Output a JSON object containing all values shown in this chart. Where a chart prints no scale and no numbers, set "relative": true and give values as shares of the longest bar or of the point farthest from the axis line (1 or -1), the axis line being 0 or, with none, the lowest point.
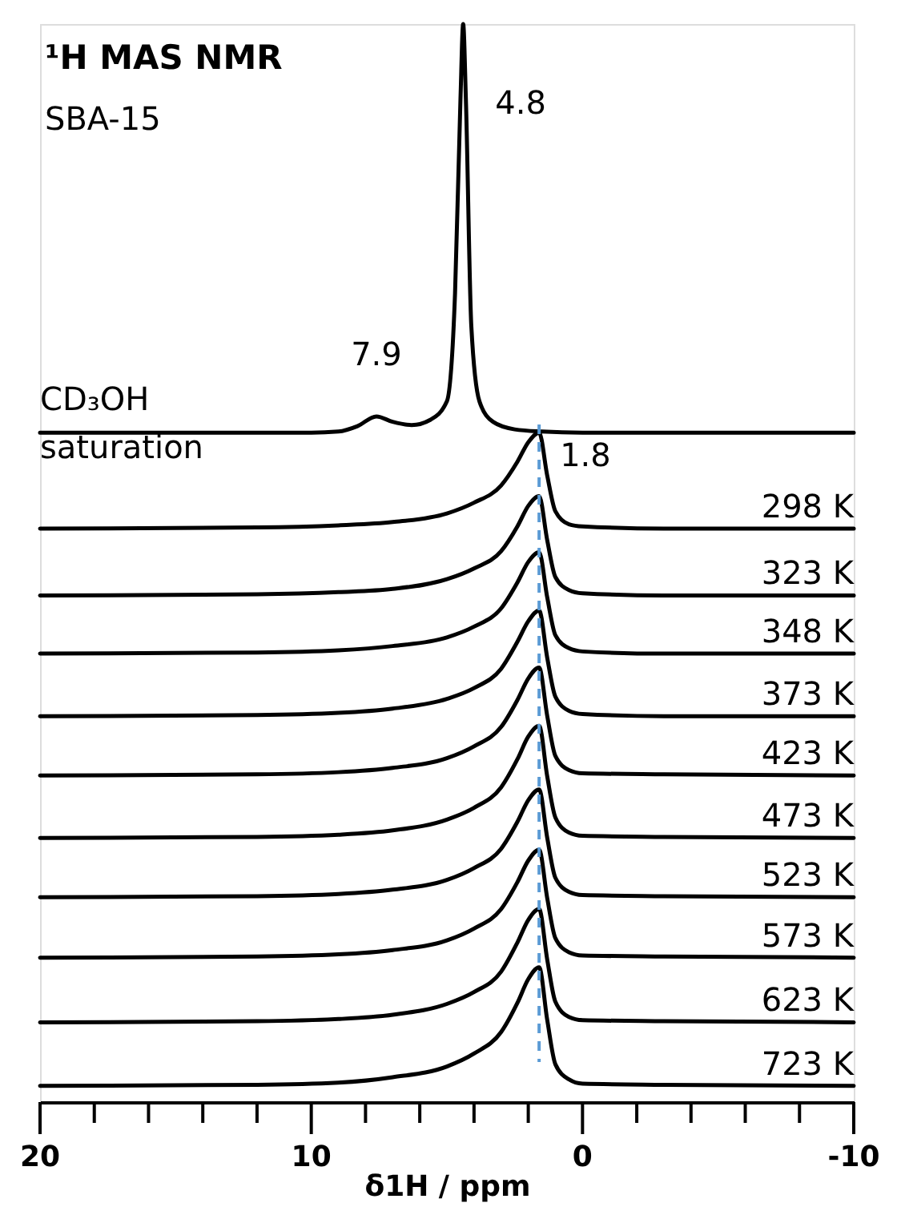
{
  "chart_data": {
    "type": "line",
    "title": "¹H MAS NMR",
    "subtitle": "SBA-15",
    "xlabel": "δ1H / ppm",
    "relative": true,
    "xlim": [
      20,
      -10
    ],
    "xticks": [
      20,
      {
        "value": 18,
        "label": null
      },
      {
        "value": 16,
        "label": null
      },
      {
        "value": 14,
        "label": null
      },
      {
        "value": 12,
        "label": null
      },
      10,
      {
        "value": 8,
        "label": null
      },
      {
        "value": 6,
        "label": null
      },
      {
        "value": 4,
        "label": null
      },
      {
        "value": 2,
        "label": null
      },
      0,
      {
        "value": -2,
        "label": null
      },
      {
        "value": -4,
        "label": null
      },
      {
        "value": -6,
        "label": null
      },
      {
        "value": -8,
        "label": null
      },
      -10
    ],
    "grid": false,
    "legend": false,
    "line_style": "solid",
    "annotations": [
      {
        "text": "4.8",
        "x": 4.4,
        "y": 1.0
      },
      {
        "text": "7.9",
        "x": 7.6,
        "y": 0.636
      },
      {
        "text": "1.8",
        "x": 1.6,
        "y": 0.621
      }
    ],
    "ref_lines": [
      {
        "axis": "x",
        "value": 1.6,
        "color": "#5b9bd5",
        "line_style": "dashed"
      }
    ],
    "series": [
      {
        "name": "CD₃OH saturation",
        "color": "#000000",
        "x": [
          20,
          10,
          9,
          8.3,
          7.6,
          7.0,
          6.3,
          5.6,
          5.0,
          4.7,
          4.5,
          4.4,
          4.3,
          4.1,
          3.8,
          3.3,
          2.5,
          1.5,
          0,
          -10
        ],
        "values": [
          0.621,
          0.621,
          0.622,
          0.627,
          0.636,
          0.631,
          0.628,
          0.633,
          0.65,
          0.75,
          0.93,
          1.0,
          0.93,
          0.72,
          0.65,
          0.631,
          0.624,
          0.622,
          0.621,
          0.621
        ]
      },
      {
        "name": "298 K",
        "color": "#000000",
        "x": [
          20,
          12,
          9,
          7,
          5,
          4,
          3,
          2.4,
          2.0,
          1.6,
          1.3,
          1.0,
          0.5,
          0,
          -3,
          -10
        ],
        "values": [
          0.532,
          0.533,
          0.535,
          0.538,
          0.546,
          0.556,
          0.572,
          0.594,
          0.612,
          0.621,
          0.581,
          0.548,
          0.536,
          0.534,
          0.532,
          0.532
        ]
      },
      {
        "name": "323 K",
        "color": "#000000",
        "x": [
          20,
          12,
          9,
          7,
          5,
          4,
          3,
          2.4,
          2.0,
          1.6,
          1.3,
          1.0,
          0.5,
          0,
          -3,
          -10
        ],
        "values": [
          0.47,
          0.471,
          0.473,
          0.476,
          0.485,
          0.495,
          0.511,
          0.534,
          0.553,
          0.562,
          0.521,
          0.487,
          0.475,
          0.472,
          0.47,
          0.47
        ]
      },
      {
        "name": "348 K",
        "color": "#000000",
        "x": [
          20,
          12,
          9,
          7,
          5,
          4,
          3,
          2.4,
          2.0,
          1.6,
          1.3,
          1.0,
          0.5,
          0,
          -3,
          -10
        ],
        "values": [
          0.416,
          0.417,
          0.419,
          0.423,
          0.431,
          0.441,
          0.458,
          0.482,
          0.501,
          0.51,
          0.468,
          0.433,
          0.421,
          0.418,
          0.416,
          0.416
        ]
      },
      {
        "name": "373 K",
        "color": "#000000",
        "x": [
          20,
          12,
          9,
          7,
          5,
          4,
          3,
          2.4,
          2.0,
          1.6,
          1.3,
          1.0,
          0.5,
          0,
          -3,
          -10
        ],
        "values": [
          0.358,
          0.359,
          0.361,
          0.365,
          0.374,
          0.384,
          0.402,
          0.427,
          0.446,
          0.456,
          0.412,
          0.376,
          0.363,
          0.36,
          0.358,
          0.358
        ]
      },
      {
        "name": "423 K",
        "color": "#000000",
        "x": [
          20,
          12,
          9,
          7,
          5,
          4,
          3,
          2.4,
          2.0,
          1.6,
          1.3,
          1.0,
          0.5,
          0,
          -3,
          -10
        ],
        "values": [
          0.303,
          0.304,
          0.306,
          0.31,
          0.319,
          0.33,
          0.348,
          0.373,
          0.393,
          0.403,
          0.358,
          0.321,
          0.308,
          0.305,
          0.304,
          0.303
        ]
      },
      {
        "name": "473 K",
        "color": "#000000",
        "x": [
          20,
          12,
          9,
          7,
          5,
          4,
          3,
          2.4,
          2.0,
          1.6,
          1.3,
          1.0,
          0.5,
          0,
          -3,
          -10
        ],
        "values": [
          0.245,
          0.246,
          0.248,
          0.252,
          0.262,
          0.273,
          0.292,
          0.318,
          0.339,
          0.349,
          0.302,
          0.264,
          0.25,
          0.247,
          0.246,
          0.245
        ]
      },
      {
        "name": "523 K",
        "color": "#000000",
        "x": [
          20,
          12,
          9,
          7,
          5,
          4,
          3,
          2.4,
          2.0,
          1.6,
          1.3,
          1.0,
          0.5,
          0,
          -3,
          -10
        ],
        "values": [
          0.19,
          0.191,
          0.193,
          0.197,
          0.206,
          0.217,
          0.235,
          0.26,
          0.28,
          0.29,
          0.245,
          0.208,
          0.195,
          0.192,
          0.191,
          0.19
        ]
      },
      {
        "name": "573 K",
        "color": "#000000",
        "x": [
          20,
          12,
          9,
          7,
          5,
          4,
          3,
          2.4,
          2.0,
          1.6,
          1.3,
          1.0,
          0.5,
          0,
          -3,
          -10
        ],
        "values": [
          0.134,
          0.135,
          0.137,
          0.141,
          0.15,
          0.161,
          0.179,
          0.204,
          0.224,
          0.234,
          0.189,
          0.152,
          0.139,
          0.136,
          0.135,
          0.134
        ]
      },
      {
        "name": "623 K",
        "color": "#000000",
        "x": [
          20,
          12,
          9,
          7,
          5,
          4,
          3,
          2.4,
          2.0,
          1.6,
          1.3,
          1.0,
          0.5,
          0,
          -3,
          -10
        ],
        "values": [
          0.074,
          0.075,
          0.077,
          0.081,
          0.091,
          0.102,
          0.121,
          0.148,
          0.169,
          0.179,
          0.132,
          0.093,
          0.079,
          0.076,
          0.075,
          0.074
        ]
      },
      {
        "name": "723 K",
        "color": "#000000",
        "x": [
          20,
          12,
          9,
          7,
          5,
          4,
          3,
          2.4,
          2.0,
          1.6,
          1.3,
          1.0,
          0.5,
          0,
          -3,
          -10
        ],
        "values": [
          0.015,
          0.016,
          0.018,
          0.023,
          0.033,
          0.045,
          0.065,
          0.092,
          0.114,
          0.125,
          0.076,
          0.035,
          0.021,
          0.017,
          0.016,
          0.015
        ]
      }
    ]
  }
}
